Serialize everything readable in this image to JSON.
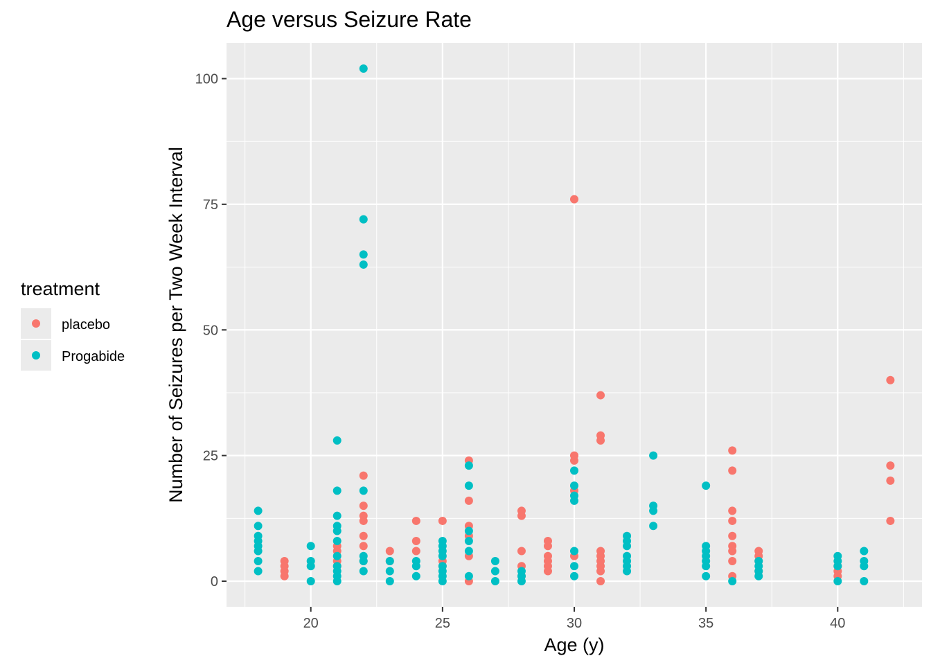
{
  "chart_data": {
    "type": "scatter",
    "title": "Age versus Seizure Rate",
    "xlabel": "Age (y)",
    "ylabel": "Number of Seizures per Two Week Interval",
    "xlim": [
      16.8,
      43.2
    ],
    "ylim": [
      -5.1,
      107.1
    ],
    "x_ticks": [
      20,
      25,
      30,
      35,
      40
    ],
    "y_ticks": [
      0,
      25,
      50,
      75,
      100
    ],
    "x_tick_labels": [
      "20",
      "25",
      "30",
      "35",
      "40"
    ],
    "y_tick_labels": [
      "0",
      "25",
      "50",
      "75",
      "100"
    ],
    "grid": true,
    "legend": {
      "title": "treatment",
      "position": "left"
    },
    "series": [
      {
        "name": "placebo",
        "color": "#F8766D",
        "points": [
          [
            19,
            1
          ],
          [
            19,
            2
          ],
          [
            19,
            3
          ],
          [
            19,
            4
          ],
          [
            21,
            3
          ],
          [
            21,
            4
          ],
          [
            21,
            6
          ],
          [
            21,
            7
          ],
          [
            22,
            4
          ],
          [
            22,
            7
          ],
          [
            22,
            9
          ],
          [
            22,
            12
          ],
          [
            22,
            13
          ],
          [
            22,
            15
          ],
          [
            22,
            21
          ],
          [
            23,
            4
          ],
          [
            23,
            6
          ],
          [
            24,
            6
          ],
          [
            24,
            8
          ],
          [
            24,
            12
          ],
          [
            25,
            3
          ],
          [
            25,
            4
          ],
          [
            25,
            12
          ],
          [
            26,
            0
          ],
          [
            26,
            5
          ],
          [
            26,
            9
          ],
          [
            26,
            11
          ],
          [
            26,
            16
          ],
          [
            26,
            24
          ],
          [
            28,
            1
          ],
          [
            28,
            3
          ],
          [
            28,
            6
          ],
          [
            28,
            13
          ],
          [
            28,
            14
          ],
          [
            29,
            2
          ],
          [
            29,
            3
          ],
          [
            29,
            4
          ],
          [
            29,
            5
          ],
          [
            29,
            7
          ],
          [
            29,
            8
          ],
          [
            30,
            5
          ],
          [
            30,
            18
          ],
          [
            30,
            24
          ],
          [
            30,
            25
          ],
          [
            30,
            76
          ],
          [
            31,
            0
          ],
          [
            31,
            2
          ],
          [
            31,
            3
          ],
          [
            31,
            4
          ],
          [
            31,
            5
          ],
          [
            31,
            6
          ],
          [
            31,
            28
          ],
          [
            31,
            29
          ],
          [
            31,
            37
          ],
          [
            36,
            1
          ],
          [
            36,
            4
          ],
          [
            36,
            6
          ],
          [
            36,
            7
          ],
          [
            36,
            9
          ],
          [
            36,
            12
          ],
          [
            36,
            14
          ],
          [
            36,
            22
          ],
          [
            36,
            26
          ],
          [
            37,
            2
          ],
          [
            37,
            4
          ],
          [
            37,
            5
          ],
          [
            37,
            6
          ],
          [
            40,
            1
          ],
          [
            40,
            2
          ],
          [
            40,
            3
          ],
          [
            42,
            12
          ],
          [
            42,
            20
          ],
          [
            42,
            23
          ],
          [
            42,
            40
          ]
        ]
      },
      {
        "name": "Progabide",
        "color": "#00BFC4",
        "points": [
          [
            18,
            2
          ],
          [
            18,
            4
          ],
          [
            18,
            6
          ],
          [
            18,
            7
          ],
          [
            18,
            8
          ],
          [
            18,
            9
          ],
          [
            18,
            11
          ],
          [
            18,
            14
          ],
          [
            20,
            0
          ],
          [
            20,
            3
          ],
          [
            20,
            4
          ],
          [
            20,
            7
          ],
          [
            21,
            0
          ],
          [
            21,
            1
          ],
          [
            21,
            2
          ],
          [
            21,
            3
          ],
          [
            21,
            5
          ],
          [
            21,
            8
          ],
          [
            21,
            10
          ],
          [
            21,
            11
          ],
          [
            21,
            13
          ],
          [
            21,
            18
          ],
          [
            21,
            28
          ],
          [
            22,
            2
          ],
          [
            22,
            4
          ],
          [
            22,
            5
          ],
          [
            22,
            18
          ],
          [
            22,
            63
          ],
          [
            22,
            65
          ],
          [
            22,
            72
          ],
          [
            22,
            102
          ],
          [
            23,
            0
          ],
          [
            23,
            2
          ],
          [
            23,
            4
          ],
          [
            24,
            1
          ],
          [
            24,
            3
          ],
          [
            24,
            4
          ],
          [
            25,
            0
          ],
          [
            25,
            1
          ],
          [
            25,
            2
          ],
          [
            25,
            3
          ],
          [
            25,
            5
          ],
          [
            25,
            6
          ],
          [
            25,
            7
          ],
          [
            25,
            8
          ],
          [
            26,
            1
          ],
          [
            26,
            6
          ],
          [
            26,
            8
          ],
          [
            26,
            10
          ],
          [
            26,
            19
          ],
          [
            26,
            23
          ],
          [
            27,
            0
          ],
          [
            27,
            2
          ],
          [
            27,
            4
          ],
          [
            28,
            0
          ],
          [
            28,
            1
          ],
          [
            28,
            2
          ],
          [
            30,
            1
          ],
          [
            30,
            3
          ],
          [
            30,
            6
          ],
          [
            30,
            16
          ],
          [
            30,
            17
          ],
          [
            30,
            19
          ],
          [
            30,
            22
          ],
          [
            32,
            2
          ],
          [
            32,
            3
          ],
          [
            32,
            4
          ],
          [
            32,
            5
          ],
          [
            32,
            7
          ],
          [
            32,
            8
          ],
          [
            32,
            9
          ],
          [
            33,
            11
          ],
          [
            33,
            14
          ],
          [
            33,
            15
          ],
          [
            33,
            25
          ],
          [
            35,
            1
          ],
          [
            35,
            3
          ],
          [
            35,
            4
          ],
          [
            35,
            5
          ],
          [
            35,
            6
          ],
          [
            35,
            7
          ],
          [
            35,
            19
          ],
          [
            36,
            0
          ],
          [
            37,
            1
          ],
          [
            37,
            2
          ],
          [
            37,
            3
          ],
          [
            37,
            4
          ],
          [
            40,
            0
          ],
          [
            40,
            3
          ],
          [
            40,
            4
          ],
          [
            40,
            5
          ],
          [
            41,
            0
          ],
          [
            41,
            3
          ],
          [
            41,
            4
          ],
          [
            41,
            6
          ]
        ]
      }
    ]
  }
}
